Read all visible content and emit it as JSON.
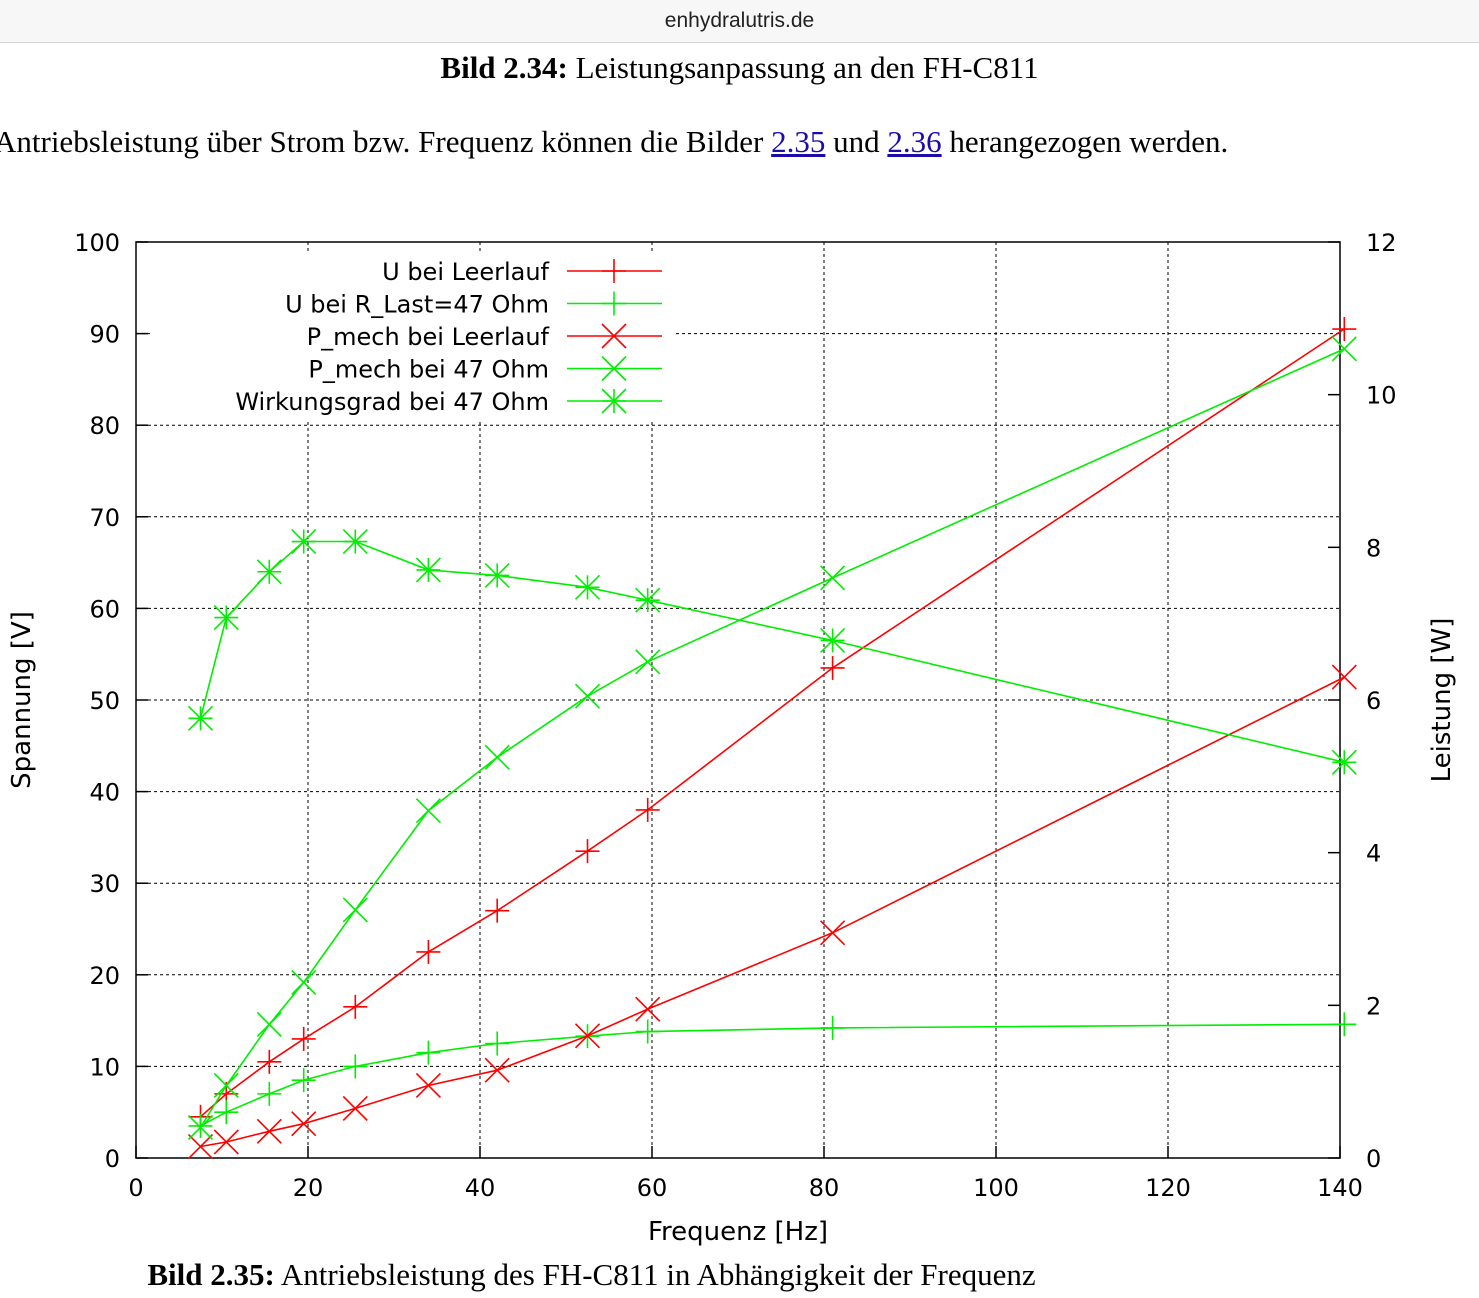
{
  "browser": {
    "url": "enhydralutris.de"
  },
  "figure_top": {
    "label": "Bild 2.34:",
    "text": " Leistungsanpassung an den FH-C811"
  },
  "paragraph": {
    "text_before": "Antriebsleistung über Strom bzw. Frequenz können die Bilder ",
    "link1": "2.35",
    "text_middle": " und ",
    "link2": "2.36",
    "text_after": " herangezogen werden."
  },
  "figure_bottom": {
    "label": "Bild 2.35:",
    "text": " Antriebsleistung des FH-C811 in Abhängigkeit der Frequenz"
  },
  "chart_data": {
    "type": "line",
    "xlabel": "Frequenz [Hz]",
    "ylabel": "Spannung [V]",
    "y2label": "Leistung [W]",
    "xlim": [
      0,
      140
    ],
    "ylim": [
      0,
      100
    ],
    "y2lim": [
      0,
      12
    ],
    "xticks": [
      "0",
      "20",
      "40",
      "60",
      "80",
      "100",
      "120",
      "140"
    ],
    "yticks": [
      "0",
      "10",
      "20",
      "30",
      "40",
      "50",
      "60",
      "70",
      "80",
      "90",
      "100"
    ],
    "y2ticks": [
      "0",
      "2",
      "4",
      "6",
      "8",
      "10",
      "12"
    ],
    "grid": true,
    "legend_position": "top-left",
    "series": [
      {
        "name": "U bei Leerlauf",
        "color": "#ff0000",
        "marker": "plus",
        "axis": "left",
        "x": [
          7.5,
          10.5,
          15.5,
          19.5,
          25.5,
          34,
          42,
          52.5,
          59.5,
          81,
          140.5
        ],
        "y": [
          4.5,
          7,
          10.5,
          13,
          16.5,
          22.5,
          27,
          33.5,
          38,
          53.5,
          90.5
        ]
      },
      {
        "name": "U bei R_Last=47 Ohm",
        "color": "#00ee00",
        "marker": "plus",
        "axis": "left",
        "x": [
          7.5,
          10.5,
          15.5,
          19.5,
          25.5,
          34,
          42,
          52.5,
          59.5,
          81,
          140.5
        ],
        "y": [
          3.5,
          5,
          7,
          8.5,
          10,
          11.5,
          12.5,
          13.3,
          13.8,
          14.2,
          14.6
        ]
      },
      {
        "name": "P_mech bei Leerlauf",
        "color": "#ff0000",
        "marker": "cross",
        "axis": "right",
        "x": [
          7.5,
          10.5,
          15.5,
          19.5,
          25.5,
          34,
          42,
          52.5,
          59.5,
          81,
          140.5
        ],
        "y": [
          0.15,
          0.21,
          0.35,
          0.45,
          0.65,
          0.95,
          1.15,
          1.6,
          1.95,
          2.95,
          6.3
        ]
      },
      {
        "name": "P_mech bei 47 Ohm",
        "color": "#00ee00",
        "marker": "cross",
        "axis": "right",
        "x": [
          7.5,
          10.5,
          15.5,
          19.5,
          25.5,
          34,
          42,
          52.5,
          59.5,
          81,
          140.5
        ],
        "y": [
          0.4,
          0.95,
          1.75,
          2.3,
          3.25,
          4.55,
          5.25,
          6.05,
          6.5,
          7.6,
          10.6
        ]
      },
      {
        "name": "Wirkungsgrad bei 47 Ohm",
        "color": "#00ee00",
        "marker": "star",
        "axis": "left",
        "x": [
          7.5,
          10.5,
          15.5,
          19.5,
          25.5,
          34,
          42,
          52.5,
          59.5,
          81,
          140.5
        ],
        "y": [
          48,
          59,
          64,
          67.3,
          67.3,
          64.2,
          63.6,
          62.3,
          60.9,
          56.5,
          43.2
        ]
      }
    ]
  }
}
